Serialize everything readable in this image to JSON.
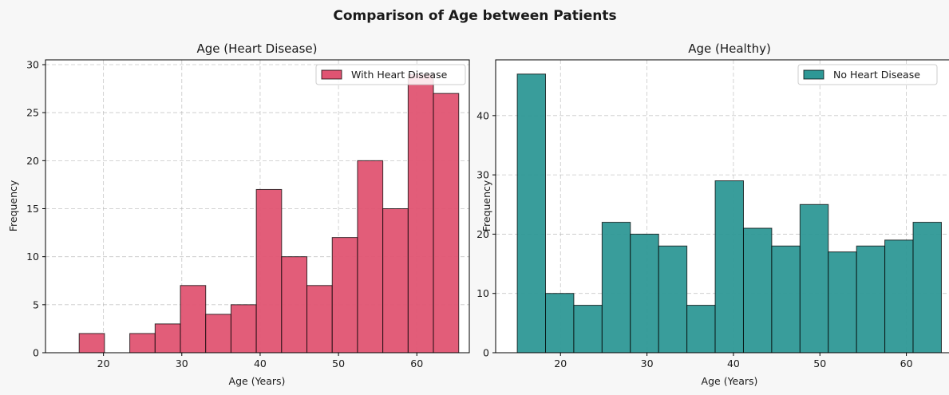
{
  "suptitle": "Comparison of Age between Patients",
  "chart_data": [
    {
      "type": "bar",
      "title": "Age (Heart Disease)",
      "xlabel": "Age (Years)",
      "ylabel": "Frequency",
      "color": "#e05472",
      "legend": "With Heart Disease",
      "legend_position": "upper right",
      "grid": true,
      "xlim": [
        12.6,
        66.7
      ],
      "ylim": [
        0,
        30.5
      ],
      "xticks": [
        20,
        30,
        40,
        50,
        60
      ],
      "yticks": [
        0,
        5,
        10,
        15,
        20,
        25,
        30
      ],
      "bin_start": 16.9,
      "bin_width": 3.23,
      "values": [
        2,
        0,
        2,
        3,
        7,
        4,
        5,
        17,
        10,
        7,
        12,
        20,
        15,
        29,
        27
      ]
    },
    {
      "type": "bar",
      "title": "Age (Healthy)",
      "xlabel": "Age (Years)",
      "ylabel": "Frequency",
      "color": "#2e9896",
      "legend": "No Heart Disease",
      "legend_position": "upper right",
      "grid": true,
      "xlim": [
        12.5,
        66.5
      ],
      "ylim": [
        0,
        49.4
      ],
      "xticks": [
        20,
        30,
        40,
        50,
        60
      ],
      "yticks": [
        0,
        10,
        20,
        30,
        40
      ],
      "bin_start": 15,
      "bin_width": 3.27,
      "values": [
        47,
        10,
        8,
        22,
        20,
        18,
        8,
        29,
        21,
        18,
        25,
        17,
        18,
        19,
        22
      ]
    }
  ]
}
